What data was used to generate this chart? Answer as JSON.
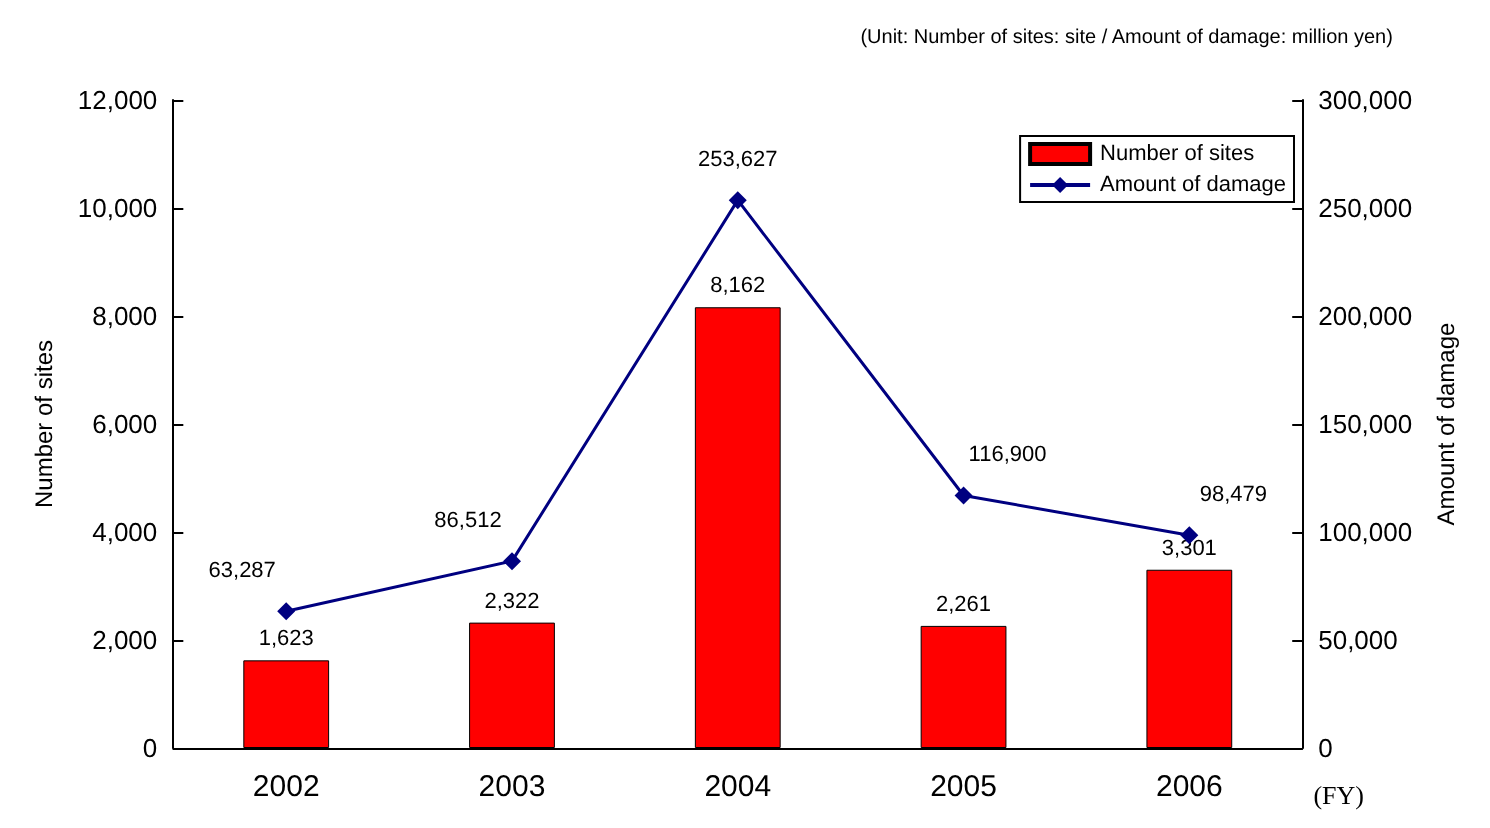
{
  "chart_data": {
    "type": "bar",
    "annotations": [
      "(Unit: Number of sites: site / Amount of damage: million yen)"
    ],
    "xlabel": "(FY)",
    "ylabel": "Number of sites",
    "y2label": "Amount of damage",
    "categories": [
      "2002",
      "2003",
      "2004",
      "2005",
      "2006"
    ],
    "series": [
      {
        "name": "Number of sites",
        "color": "#ff0000",
        "values": [
          1623,
          2322,
          8162,
          2261,
          3301
        ],
        "value_labels": [
          "1,623",
          "2,322",
          "8,162",
          "2,261",
          "3,301"
        ]
      },
      {
        "name": "Amount of damage",
        "type": "line",
        "axis": "y2",
        "color": "#000080",
        "values": [
          63287,
          86512,
          253627,
          116900,
          98479
        ],
        "value_labels": [
          "63,287",
          "86,512",
          "253,627",
          "116,900",
          "98,479"
        ]
      }
    ],
    "ylim": [
      0,
      12000
    ],
    "yticks": [
      0,
      {
        "value": 2000,
        "label": "2,000"
      },
      {
        "value": 4000,
        "label": "4,000"
      },
      {
        "value": 6000,
        "label": "6,000"
      },
      {
        "value": 8000,
        "label": "8,000"
      },
      {
        "value": 10000,
        "label": "10,000"
      },
      {
        "value": 12000,
        "label": "12,000"
      }
    ],
    "y2lim": [
      0,
      300000
    ],
    "y2ticks": [
      0,
      {
        "value": 50000,
        "label": "50,000"
      },
      {
        "value": 100000,
        "label": "100,000"
      },
      {
        "value": 150000,
        "label": "150,000"
      },
      {
        "value": 200000,
        "label": "200,000"
      },
      {
        "value": 250000,
        "label": "250,000"
      },
      {
        "value": 300000,
        "label": "300,000"
      }
    ],
    "legend": "top right",
    "grid": false,
    "marker": "diamond",
    "line_style": "solid"
  }
}
